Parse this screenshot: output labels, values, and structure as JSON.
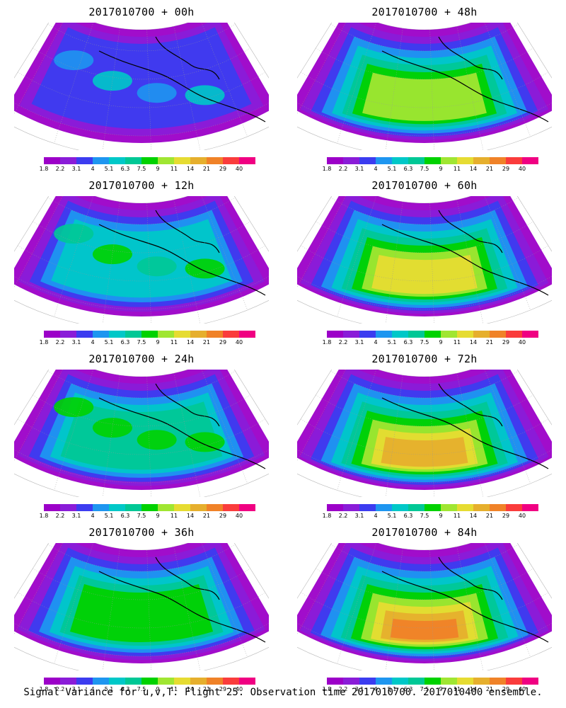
{
  "panels": [
    {
      "title": "2017010700 + 00h",
      "level": 0
    },
    {
      "title": "2017010700 + 48h",
      "level": 5
    },
    {
      "title": "2017010700 + 12h",
      "level": 2
    },
    {
      "title": "2017010700 + 60h",
      "level": 6
    },
    {
      "title": "2017010700 + 24h",
      "level": 3
    },
    {
      "title": "2017010700 + 72h",
      "level": 7
    },
    {
      "title": "2017010700 + 36h",
      "level": 4
    },
    {
      "title": "2017010700 + 84h",
      "level": 8
    }
  ],
  "colorbar": {
    "labels": [
      "1.8",
      "2.2",
      "3.1",
      "4",
      "5.1",
      "6.3",
      "7.5",
      "9",
      "11",
      "14",
      "21",
      "29",
      "40"
    ],
    "colors": [
      "#9c00c8",
      "#8a1cd8",
      "#3c3cf0",
      "#1e96f0",
      "#00c8c8",
      "#00c896",
      "#00d200",
      "#a0e632",
      "#e6dc32",
      "#e6af2d",
      "#f08228",
      "#fa3c3c",
      "#f00082"
    ]
  },
  "footer": "Signal Variance for u,v,T. Flight 25. Observation time 2017010700. 2017010400 ensemble."
}
